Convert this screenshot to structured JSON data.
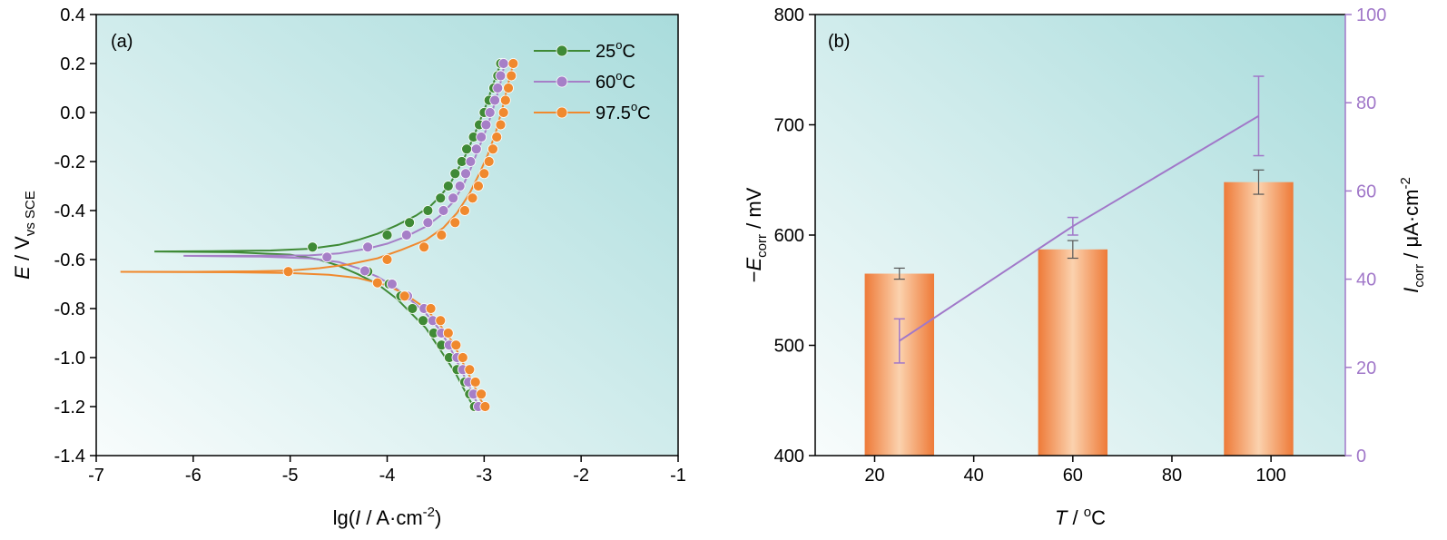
{
  "colors": {
    "series_25": "#3f8a36",
    "series_60": "#a67fc7",
    "series_975": "#f0892e",
    "bar": "#f0935a",
    "icorr_line": "#a178c9",
    "bg_light": "#f8fcfc",
    "bg_dark": "#a9dcdc"
  },
  "chart_data": [
    {
      "type": "line",
      "panel_label": "(a)",
      "xlabel": {
        "pre": "lg(",
        "italic": "I",
        "mid": " / A·cm",
        "sup": "-2",
        "post": ")"
      },
      "ylabel": {
        "italic": "E",
        "mid": " / V",
        "sub": "vs SCE"
      },
      "xlim": [
        -7,
        -1
      ],
      "ylim": [
        -1.4,
        0.4
      ],
      "xticks": [
        -7,
        -6,
        -5,
        -4,
        -3,
        -2,
        -1
      ],
      "xtick_labels": [
        "-7",
        "-6",
        "-5",
        "-4",
        "-3",
        "-2",
        "-1"
      ],
      "yticks": [
        -1.4,
        -1.2,
        -1.0,
        -0.8,
        -0.6,
        -0.4,
        -0.2,
        0.0,
        0.2,
        0.4
      ],
      "ytick_labels": [
        "-1.4",
        "-1.2",
        "-1.0",
        "-0.8",
        "-0.6",
        "-0.4",
        "-0.2",
        "0.0",
        "0.2",
        "0.4"
      ],
      "legend_position": "top-right",
      "series": [
        {
          "key": "s25",
          "name": "25",
          "unit": "oC",
          "color_key": "series_25",
          "curve": [
            [
              -6.4,
              -0.567
            ],
            [
              -5.8,
              -0.566
            ],
            [
              -5.2,
              -0.563
            ],
            [
              -4.8,
              -0.556
            ],
            [
              -4.5,
              -0.54
            ],
            [
              -4.3,
              -0.52
            ],
            [
              -4.1,
              -0.495
            ],
            [
              -3.9,
              -0.46
            ],
            [
              -3.7,
              -0.42
            ],
            [
              -3.55,
              -0.38
            ],
            [
              -3.45,
              -0.34
            ],
            [
              -3.35,
              -0.29
            ],
            [
              -3.28,
              -0.24
            ],
            [
              -3.2,
              -0.18
            ],
            [
              -3.12,
              -0.11
            ],
            [
              -3.05,
              -0.04
            ],
            [
              -2.98,
              0.03
            ],
            [
              -2.92,
              0.1
            ],
            [
              -2.86,
              0.17
            ],
            [
              -2.82,
              0.2
            ],
            null,
            [
              -6.4,
              -0.567
            ],
            [
              -5.6,
              -0.57
            ],
            [
              -5.0,
              -0.58
            ],
            [
              -4.7,
              -0.6
            ],
            [
              -4.5,
              -0.625
            ],
            [
              -4.3,
              -0.66
            ],
            [
              -4.1,
              -0.7
            ],
            [
              -3.9,
              -0.76
            ],
            [
              -3.75,
              -0.82
            ],
            [
              -3.6,
              -0.88
            ],
            [
              -3.5,
              -0.94
            ],
            [
              -3.4,
              -1.0
            ],
            [
              -3.3,
              -1.06
            ],
            [
              -3.22,
              -1.12
            ],
            [
              -3.14,
              -1.18
            ],
            [
              -3.1,
              -1.2
            ]
          ],
          "markers": [
            [
              -4.77,
              -0.549
            ],
            [
              -4.0,
              -0.5
            ],
            [
              -3.77,
              -0.449
            ],
            [
              -3.58,
              -0.4
            ],
            [
              -3.45,
              -0.349
            ],
            [
              -3.37,
              -0.3
            ],
            [
              -3.3,
              -0.249
            ],
            [
              -3.23,
              -0.2
            ],
            [
              -3.18,
              -0.149
            ],
            [
              -3.11,
              -0.1
            ],
            [
              -3.05,
              -0.05
            ],
            [
              -3.0,
              0.0
            ],
            [
              -2.95,
              0.05
            ],
            [
              -2.9,
              0.1
            ],
            [
              -2.86,
              0.15
            ],
            [
              -2.83,
              0.2
            ],
            [
              -4.2,
              -0.649
            ],
            [
              -3.98,
              -0.7
            ],
            [
              -3.86,
              -0.749
            ],
            [
              -3.74,
              -0.8
            ],
            [
              -3.63,
              -0.849
            ],
            [
              -3.52,
              -0.9
            ],
            [
              -3.44,
              -0.949
            ],
            [
              -3.36,
              -1.0
            ],
            [
              -3.28,
              -1.049
            ],
            [
              -3.2,
              -1.1
            ],
            [
              -3.15,
              -1.149
            ],
            [
              -3.1,
              -1.2
            ]
          ]
        },
        {
          "key": "s60",
          "name": "60",
          "unit": "oC",
          "color_key": "series_60",
          "curve": [
            [
              -6.1,
              -0.585
            ],
            [
              -5.4,
              -0.585
            ],
            [
              -4.8,
              -0.583
            ],
            [
              -4.5,
              -0.575
            ],
            [
              -4.2,
              -0.555
            ],
            [
              -4.0,
              -0.535
            ],
            [
              -3.8,
              -0.505
            ],
            [
              -3.6,
              -0.465
            ],
            [
              -3.45,
              -0.42
            ],
            [
              -3.32,
              -0.365
            ],
            [
              -3.22,
              -0.3
            ],
            [
              -3.14,
              -0.23
            ],
            [
              -3.06,
              -0.15
            ],
            [
              -2.98,
              -0.07
            ],
            [
              -2.92,
              0.0
            ],
            [
              -2.86,
              0.08
            ],
            [
              -2.82,
              0.14
            ],
            [
              -2.79,
              0.2
            ],
            null,
            [
              -6.1,
              -0.585
            ],
            [
              -5.3,
              -0.588
            ],
            [
              -4.8,
              -0.595
            ],
            [
              -4.5,
              -0.61
            ],
            [
              -4.3,
              -0.635
            ],
            [
              -4.1,
              -0.67
            ],
            [
              -3.95,
              -0.705
            ],
            [
              -3.8,
              -0.75
            ],
            [
              -3.6,
              -0.82
            ],
            [
              -3.45,
              -0.89
            ],
            [
              -3.35,
              -0.96
            ],
            [
              -3.25,
              -1.04
            ],
            [
              -3.15,
              -1.12
            ],
            [
              -3.08,
              -1.18
            ],
            [
              -3.05,
              -1.2
            ]
          ],
          "markers": [
            [
              -4.62,
              -0.59
            ],
            [
              -4.2,
              -0.549
            ],
            [
              -3.8,
              -0.5
            ],
            [
              -3.58,
              -0.449
            ],
            [
              -3.42,
              -0.4
            ],
            [
              -3.32,
              -0.349
            ],
            [
              -3.25,
              -0.3
            ],
            [
              -3.19,
              -0.249
            ],
            [
              -3.14,
              -0.2
            ],
            [
              -3.08,
              -0.149
            ],
            [
              -3.03,
              -0.1
            ],
            [
              -2.98,
              -0.05
            ],
            [
              -2.94,
              0.0
            ],
            [
              -2.89,
              0.05
            ],
            [
              -2.86,
              0.1
            ],
            [
              -2.83,
              0.15
            ],
            [
              -2.8,
              0.2
            ],
            [
              -4.23,
              -0.646
            ],
            [
              -3.95,
              -0.7
            ],
            [
              -3.79,
              -0.749
            ],
            [
              -3.62,
              -0.8
            ],
            [
              -3.53,
              -0.849
            ],
            [
              -3.44,
              -0.9
            ],
            [
              -3.36,
              -0.949
            ],
            [
              -3.28,
              -1.0
            ],
            [
              -3.22,
              -1.049
            ],
            [
              -3.16,
              -1.1
            ],
            [
              -3.11,
              -1.149
            ],
            [
              -3.06,
              -1.2
            ]
          ]
        },
        {
          "key": "s975",
          "name": "97.5",
          "unit": "oC",
          "color_key": "series_975",
          "curve": [
            [
              -6.75,
              -0.65
            ],
            [
              -6.0,
              -0.65
            ],
            [
              -5.4,
              -0.648
            ],
            [
              -5.0,
              -0.645
            ],
            [
              -4.7,
              -0.635
            ],
            [
              -4.4,
              -0.62
            ],
            [
              -4.1,
              -0.595
            ],
            [
              -3.85,
              -0.56
            ],
            [
              -3.6,
              -0.52
            ],
            [
              -3.42,
              -0.47
            ],
            [
              -3.28,
              -0.41
            ],
            [
              -3.15,
              -0.33
            ],
            [
              -3.05,
              -0.25
            ],
            [
              -2.96,
              -0.17
            ],
            [
              -2.88,
              -0.08
            ],
            [
              -2.81,
              0.02
            ],
            [
              -2.75,
              0.12
            ],
            [
              -2.7,
              0.2
            ],
            null,
            [
              -6.75,
              -0.65
            ],
            [
              -5.6,
              -0.652
            ],
            [
              -5.0,
              -0.655
            ],
            [
              -4.6,
              -0.662
            ],
            [
              -4.3,
              -0.675
            ],
            [
              -4.0,
              -0.705
            ],
            [
              -3.8,
              -0.745
            ],
            [
              -3.6,
              -0.8
            ],
            [
              -3.45,
              -0.87
            ],
            [
              -3.32,
              -0.94
            ],
            [
              -3.22,
              -1.02
            ],
            [
              -3.12,
              -1.1
            ],
            [
              -3.04,
              -1.17
            ],
            [
              -2.99,
              -1.2
            ]
          ],
          "markers": [
            [
              -5.02,
              -0.649
            ],
            [
              -4.0,
              -0.6
            ],
            [
              -3.62,
              -0.549
            ],
            [
              -3.44,
              -0.5
            ],
            [
              -3.3,
              -0.449
            ],
            [
              -3.2,
              -0.4
            ],
            [
              -3.12,
              -0.349
            ],
            [
              -3.06,
              -0.3
            ],
            [
              -3.0,
              -0.249
            ],
            [
              -2.95,
              -0.2
            ],
            [
              -2.91,
              -0.149
            ],
            [
              -2.87,
              -0.1
            ],
            [
              -2.83,
              -0.05
            ],
            [
              -2.8,
              0.0
            ],
            [
              -2.78,
              0.05
            ],
            [
              -2.75,
              0.1
            ],
            [
              -2.72,
              0.15
            ],
            [
              -2.7,
              0.2
            ],
            [
              -4.1,
              -0.695
            ],
            [
              -3.82,
              -0.749
            ],
            [
              -3.55,
              -0.8
            ],
            [
              -3.45,
              -0.849
            ],
            [
              -3.37,
              -0.9
            ],
            [
              -3.29,
              -0.949
            ],
            [
              -3.22,
              -1.0
            ],
            [
              -3.15,
              -1.049
            ],
            [
              -3.09,
              -1.1
            ],
            [
              -3.03,
              -1.149
            ],
            [
              -2.99,
              -1.2
            ]
          ]
        }
      ]
    },
    {
      "type": "bar",
      "panel_label": "(b)",
      "xlabel": {
        "italic": "T",
        "mid": " / ",
        "post": "oC"
      },
      "ylabel": {
        "pre": "−",
        "italic": "E",
        "sub": "corr",
        "post": " / mV"
      },
      "ylabel_right": {
        "italic": "I",
        "sub": "corr",
        "mid": " / μA·cm",
        "sup": "-2"
      },
      "xlim": [
        8,
        115
      ],
      "ylim": [
        400,
        800
      ],
      "ylim_right": [
        0,
        100
      ],
      "xticks": [
        20,
        40,
        60,
        80,
        100
      ],
      "xtick_labels": [
        "20",
        "40",
        "60",
        "80",
        "100"
      ],
      "yticks": [
        400,
        500,
        600,
        700,
        800
      ],
      "ytick_labels": [
        "400",
        "500",
        "600",
        "700",
        "800"
      ],
      "yticks_right": [
        0,
        20,
        40,
        60,
        80,
        100
      ],
      "ytick_labels_right": [
        "0",
        "20",
        "40",
        "60",
        "80",
        "100"
      ],
      "bar_width": 14,
      "bars": [
        {
          "x": 25,
          "value": 565,
          "err": 5
        },
        {
          "x": 60,
          "value": 587,
          "err": 8
        },
        {
          "x": 97.5,
          "value": 648,
          "err": 11
        }
      ],
      "line_series": [
        {
          "x": 25,
          "value": 26,
          "err": 5
        },
        {
          "x": 60,
          "value": 52,
          "err": 2
        },
        {
          "x": 97.5,
          "value": 77,
          "err": 9
        }
      ]
    }
  ]
}
